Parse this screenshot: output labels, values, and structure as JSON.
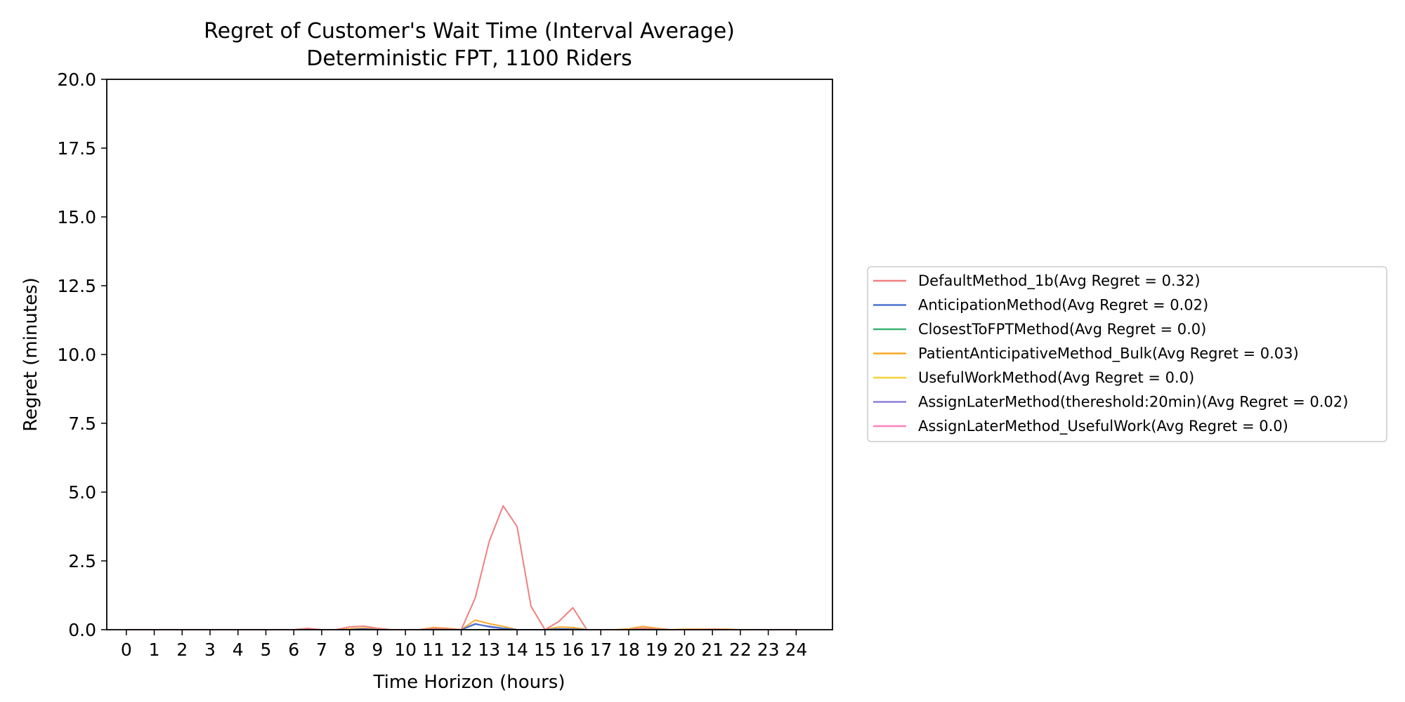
{
  "chart_data": {
    "type": "line",
    "title": "Regret of Customer's Wait Time (Interval Average)",
    "subtitle": "Deterministic FPT, 1100 Riders",
    "xlabel": "Time Horizon (hours)",
    "ylabel": "Regret (minutes)",
    "xlim": [
      -0.7,
      25.3
    ],
    "ylim": [
      0,
      20
    ],
    "xticks": [
      0,
      1,
      2,
      3,
      4,
      5,
      6,
      7,
      8,
      9,
      10,
      11,
      12,
      13,
      14,
      15,
      16,
      17,
      18,
      19,
      20,
      21,
      22,
      23,
      24
    ],
    "yticks": [
      "0.0",
      "2.5",
      "5.0",
      "7.5",
      "10.0",
      "12.5",
      "15.0",
      "17.5",
      "20.0"
    ],
    "grid": false,
    "legend_position": "right",
    "x": [
      0,
      0.5,
      1,
      1.5,
      2,
      2.5,
      3,
      3.5,
      4,
      4.5,
      5,
      5.5,
      6,
      6.5,
      7,
      7.5,
      8,
      8.5,
      9,
      9.5,
      10,
      10.5,
      11,
      11.5,
      12,
      12.5,
      13,
      13.5,
      14,
      14.5,
      15,
      15.5,
      16,
      16.5,
      17,
      17.5,
      18,
      18.5,
      19,
      19.5,
      20,
      20.5,
      21,
      21.5,
      22,
      22.5,
      23,
      23.5,
      24
    ],
    "series": [
      {
        "name": "DefaultMethod_1b(Avg Regret = 0.32)",
        "color": "#f08080",
        "values": [
          0,
          0,
          0,
          0,
          0,
          0,
          0,
          0,
          0,
          0,
          0,
          0,
          0,
          0.05,
          0,
          0,
          0.1,
          0.13,
          0.05,
          0,
          0,
          0,
          0.05,
          0.03,
          0,
          1.15,
          3.2,
          4.5,
          3.75,
          0.85,
          0,
          0.3,
          0.8,
          0,
          0,
          0,
          0,
          0.05,
          0.02,
          0,
          0,
          0,
          0.02,
          0,
          0,
          0,
          0,
          0,
          0
        ]
      },
      {
        "name": "AnticipationMethod(Avg Regret = 0.02)",
        "color": "#4c72d0",
        "values": [
          0,
          0,
          0,
          0,
          0,
          0,
          0,
          0,
          0,
          0,
          0,
          0,
          0,
          0,
          0,
          0,
          0,
          0.03,
          0,
          0,
          0,
          0,
          0.03,
          0,
          0,
          0.2,
          0.12,
          0.05,
          0,
          0,
          0,
          0.03,
          0.02,
          0,
          0,
          0,
          0,
          0.05,
          0.02,
          0,
          0,
          0,
          0,
          0,
          0,
          0,
          0,
          0,
          0
        ]
      },
      {
        "name": "ClosestToFPTMethod(Avg Regret = 0.0)",
        "color": "#3cb371",
        "values": [
          0,
          0,
          0,
          0,
          0,
          0,
          0,
          0,
          0,
          0,
          0,
          0,
          0,
          0,
          0,
          0,
          0,
          0,
          0,
          0,
          0,
          0,
          0,
          0,
          0,
          0,
          0,
          0,
          0,
          0,
          0,
          0,
          0,
          0,
          0,
          0,
          0,
          0,
          0,
          0,
          0,
          0,
          0,
          0,
          0,
          0,
          0,
          0,
          0
        ]
      },
      {
        "name": "PatientAnticipativeMethod_Bulk(Avg Regret = 0.03)",
        "color": "#ffa726",
        "values": [
          0,
          0,
          0,
          0,
          0,
          0,
          0,
          0,
          0,
          0,
          0,
          0,
          0,
          0,
          0,
          0,
          0.03,
          0.06,
          0.02,
          0,
          0,
          0,
          0.08,
          0.05,
          0,
          0.35,
          0.22,
          0.12,
          0,
          0,
          0,
          0.1,
          0.08,
          0,
          0,
          0,
          0.03,
          0.12,
          0.05,
          0,
          0.02,
          0.02,
          0.02,
          0.02,
          0,
          0,
          0,
          0,
          0
        ]
      },
      {
        "name": "UsefulWorkMethod(Avg Regret = 0.0)",
        "color": "#f5d33b",
        "values": [
          0,
          0,
          0,
          0,
          0,
          0,
          0,
          0,
          0,
          0,
          0,
          0,
          0,
          0,
          0,
          0,
          0,
          0,
          0,
          0,
          0,
          0,
          0,
          0,
          0,
          0,
          0,
          0,
          0,
          0,
          0,
          0,
          0,
          0,
          0,
          0,
          0,
          0,
          0,
          0,
          0,
          0,
          0,
          0,
          0,
          0,
          0,
          0,
          0
        ]
      },
      {
        "name": "AssignLaterMethod(thereshold:20min)(Avg Regret = 0.02)",
        "color": "#8c7fd6",
        "values": [
          0,
          0,
          0,
          0,
          0,
          0,
          0,
          0,
          0,
          0,
          0,
          0,
          0,
          0,
          0,
          0,
          0,
          0.03,
          0,
          0,
          0,
          0,
          0.02,
          0,
          0,
          0.22,
          0.1,
          0.04,
          0,
          0,
          0,
          0.03,
          0.02,
          0,
          0,
          0,
          0,
          0.04,
          0.02,
          0,
          0,
          0,
          0,
          0,
          0,
          0,
          0,
          0,
          0
        ]
      },
      {
        "name": "AssignLaterMethod_UsefulWork(Avg Regret = 0.0)",
        "color": "#ff80c0",
        "values": [
          0,
          0,
          0,
          0,
          0,
          0,
          0,
          0,
          0,
          0,
          0,
          0,
          0,
          0,
          0,
          0,
          0,
          0,
          0,
          0,
          0,
          0,
          0,
          0,
          0,
          0,
          0,
          0,
          0,
          0,
          0,
          0,
          0,
          0,
          0,
          0,
          0,
          0,
          0,
          0,
          0,
          0,
          0,
          0,
          0,
          0,
          0,
          0,
          0
        ]
      }
    ]
  }
}
